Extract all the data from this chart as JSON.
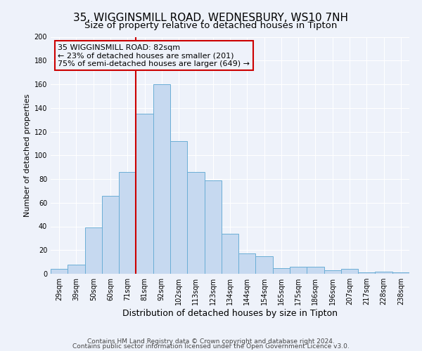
{
  "title1": "35, WIGGINSMILL ROAD, WEDNESBURY, WS10 7NH",
  "title2": "Size of property relative to detached houses in Tipton",
  "xlabel": "Distribution of detached houses by size in Tipton",
  "ylabel": "Number of detached properties",
  "bar_labels": [
    "29sqm",
    "39sqm",
    "50sqm",
    "60sqm",
    "71sqm",
    "81sqm",
    "92sqm",
    "102sqm",
    "113sqm",
    "123sqm",
    "134sqm",
    "144sqm",
    "154sqm",
    "165sqm",
    "175sqm",
    "186sqm",
    "196sqm",
    "207sqm",
    "217sqm",
    "228sqm",
    "238sqm"
  ],
  "bar_values": [
    4,
    8,
    39,
    66,
    86,
    135,
    160,
    112,
    86,
    79,
    34,
    17,
    15,
    5,
    6,
    6,
    3,
    4,
    1,
    2,
    1
  ],
  "bar_color": "#c6d9f0",
  "bar_edge_color": "#6baed6",
  "vline_x": 5,
  "vline_color": "#cc0000",
  "annotation_text": "35 WIGGINSMILL ROAD: 82sqm\n← 23% of detached houses are smaller (201)\n75% of semi-detached houses are larger (649) →",
  "annotation_box_edge": "#cc0000",
  "ylim": [
    0,
    200
  ],
  "yticks": [
    0,
    20,
    40,
    60,
    80,
    100,
    120,
    140,
    160,
    180,
    200
  ],
  "footer1": "Contains HM Land Registry data © Crown copyright and database right 2024.",
  "footer2": "Contains public sector information licensed under the Open Government Licence v3.0.",
  "bg_color": "#eef2fa",
  "grid_color": "#ffffff",
  "title1_fontsize": 11,
  "title2_fontsize": 9.5,
  "xlabel_fontsize": 9,
  "ylabel_fontsize": 8,
  "annotation_fontsize": 8,
  "footer_fontsize": 6.5,
  "tick_fontsize": 7
}
